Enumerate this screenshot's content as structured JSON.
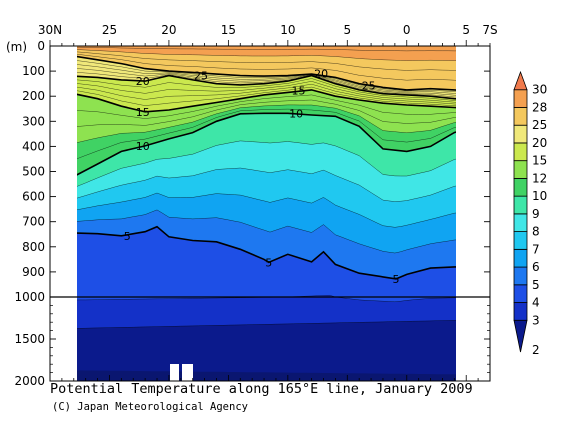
{
  "chart_data": {
    "type": "heatmap",
    "title": "Potential Temperature along 165°E line, January 2009",
    "credit": "(C) Japan Meteorological Agency",
    "x_axis": {
      "position": "top",
      "tick_labels": [
        "30N",
        "25",
        "20",
        "15",
        "10",
        "5",
        "0",
        "5",
        "7S"
      ],
      "tick_values": [
        30,
        25,
        20,
        15,
        10,
        5,
        0,
        -5,
        -7
      ],
      "range": [
        30,
        -7
      ]
    },
    "y_axis": {
      "unit_label": "(m)",
      "tick_labels": [
        "0",
        "100",
        "200",
        "300",
        "400",
        "500",
        "600",
        "700",
        "800",
        "900",
        "1000",
        "1500",
        "2000"
      ],
      "upper_range": [
        0,
        1000
      ],
      "upper_ticks": [
        0,
        100,
        200,
        300,
        400,
        500,
        600,
        700,
        800,
        900,
        1000
      ],
      "lower_range": [
        1000,
        2000
      ],
      "lower_ticks": [
        1500,
        2000
      ],
      "scale_break_depth": 1000
    },
    "data_extent": {
      "lat_north": 28,
      "lat_south": -5
    },
    "colorbar": {
      "levels": [
        2,
        3,
        4,
        5,
        6,
        7,
        8,
        9,
        10,
        12,
        15,
        20,
        25,
        28,
        30
      ],
      "tick_labels": [
        "2",
        "3",
        "4",
        "5",
        "6",
        "7",
        "8",
        "9",
        "10",
        "12",
        "15",
        "20",
        "25",
        "28",
        "30"
      ],
      "colors": [
        "#0b1a8c",
        "#1431c8",
        "#1e4fe6",
        "#1e78f0",
        "#10a4f2",
        "#20c8f0",
        "#40e6e6",
        "#3ee6a8",
        "#40d264",
        "#8ee250",
        "#cbe84e",
        "#f0e87a",
        "#f4c85e",
        "#f4a050",
        "#f07a4c"
      ]
    },
    "contour_labels": [
      {
        "text": "20",
        "lat": 22.2,
        "depth": 140
      },
      {
        "text": "25",
        "lat": 17.3,
        "depth": 118
      },
      {
        "text": "20",
        "lat": 7.2,
        "depth": 110
      },
      {
        "text": "25",
        "lat": 3.2,
        "depth": 158
      },
      {
        "text": "15",
        "lat": 9.1,
        "depth": 178
      },
      {
        "text": "15",
        "lat": 22.2,
        "depth": 262
      },
      {
        "text": "10",
        "lat": 9.3,
        "depth": 268
      },
      {
        "text": "10",
        "lat": 22.2,
        "depth": 398
      },
      {
        "text": "5",
        "lat": 23.5,
        "depth": 756
      },
      {
        "text": "5",
        "lat": 11.6,
        "depth": 862
      },
      {
        "text": "5",
        "lat": 0.9,
        "depth": 928
      }
    ],
    "isotherms": [
      {
        "value": 25,
        "bold": true,
        "profile": [
          [
            28,
            40
          ],
          [
            26,
            55
          ],
          [
            24,
            70
          ],
          [
            22,
            90
          ],
          [
            20,
            100
          ],
          [
            18,
            105
          ],
          [
            16,
            112
          ],
          [
            14,
            118
          ],
          [
            12,
            120
          ],
          [
            10,
            118
          ],
          [
            8,
            112
          ],
          [
            6,
            125
          ],
          [
            4,
            150
          ],
          [
            2,
            165
          ],
          [
            0,
            175
          ],
          [
            -2,
            170
          ],
          [
            -4,
            175
          ],
          [
            -5,
            178
          ]
        ]
      },
      {
        "value": 20,
        "bold": true,
        "profile": [
          [
            28,
            120
          ],
          [
            26,
            125
          ],
          [
            24,
            135
          ],
          [
            22,
            140
          ],
          [
            20,
            118
          ],
          [
            18,
            135
          ],
          [
            16,
            150
          ],
          [
            14,
            155
          ],
          [
            12,
            150
          ],
          [
            10,
            140
          ],
          [
            8,
            118
          ],
          [
            6,
            150
          ],
          [
            4,
            175
          ],
          [
            2,
            190
          ],
          [
            0,
            195
          ],
          [
            -2,
            200
          ],
          [
            -4,
            210
          ],
          [
            -5,
            212
          ]
        ]
      },
      {
        "value": 15,
        "bold": true,
        "profile": [
          [
            28,
            190
          ],
          [
            26,
            210
          ],
          [
            24,
            240
          ],
          [
            22,
            262
          ],
          [
            20,
            255
          ],
          [
            18,
            240
          ],
          [
            16,
            225
          ],
          [
            14,
            210
          ],
          [
            12,
            195
          ],
          [
            10,
            185
          ],
          [
            8,
            175
          ],
          [
            6,
            200
          ],
          [
            4,
            215
          ],
          [
            2,
            228
          ],
          [
            0,
            235
          ],
          [
            -2,
            240
          ],
          [
            -4,
            245
          ],
          [
            -5,
            248
          ]
        ]
      },
      {
        "value": 10,
        "bold": true,
        "profile": [
          [
            28,
            520
          ],
          [
            26,
            470
          ],
          [
            24,
            420
          ],
          [
            22,
            398
          ],
          [
            20,
            370
          ],
          [
            18,
            345
          ],
          [
            16,
            300
          ],
          [
            14,
            270
          ],
          [
            12,
            268
          ],
          [
            10,
            268
          ],
          [
            8,
            275
          ],
          [
            6,
            280
          ],
          [
            4,
            320
          ],
          [
            2,
            410
          ],
          [
            0,
            420
          ],
          [
            -2,
            400
          ],
          [
            -4,
            345
          ],
          [
            -5,
            330
          ]
        ]
      },
      {
        "value": 5,
        "bold": true,
        "profile": [
          [
            28,
            745
          ],
          [
            26,
            748
          ],
          [
            24,
            756
          ],
          [
            22,
            740
          ],
          [
            21,
            720
          ],
          [
            20,
            760
          ],
          [
            18,
            775
          ],
          [
            16,
            780
          ],
          [
            14,
            810
          ],
          [
            12,
            850
          ],
          [
            11.6,
            862
          ],
          [
            10,
            830
          ],
          [
            8,
            860
          ],
          [
            7,
            820
          ],
          [
            6,
            870
          ],
          [
            4,
            905
          ],
          [
            2,
            920
          ],
          [
            0.9,
            928
          ],
          [
            0,
            910
          ],
          [
            -2,
            885
          ],
          [
            -4,
            880
          ],
          [
            -5,
            880
          ]
        ]
      }
    ]
  }
}
